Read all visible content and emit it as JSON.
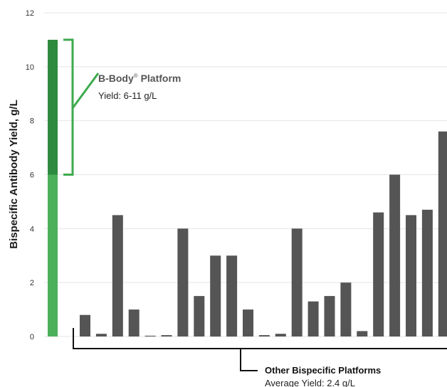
{
  "chart_data": {
    "type": "bar",
    "ylabel": "Bispecific Antibody Yield, g/L",
    "ylim": [
      0,
      12
    ],
    "yticks": [
      "0",
      "2",
      "4",
      "6",
      "8",
      "10",
      "12"
    ],
    "grid": true,
    "bbody": {
      "range": [
        6,
        11
      ],
      "label_main": "B-Body",
      "label_sup": "®",
      "label_rest": " Platform",
      "yield_text": "Yield: 6-11 g/L",
      "color_base": "#4cb05a",
      "color_range": "#2e8a3e",
      "bracket_color": "#3daa4e"
    },
    "others": {
      "values": [
        0.8,
        0.1,
        4.5,
        1.0,
        0.03,
        0.05,
        4.0,
        1.5,
        3.0,
        3.0,
        1.0,
        0.05,
        0.1,
        4.0,
        1.3,
        1.5,
        2.0,
        0.2,
        4.6,
        6.0,
        4.5,
        4.7,
        7.6
      ],
      "color": "#555555",
      "title": "Other Bispecific Platforms",
      "yield_text": "Average Yield: 2.4 g/L"
    }
  }
}
